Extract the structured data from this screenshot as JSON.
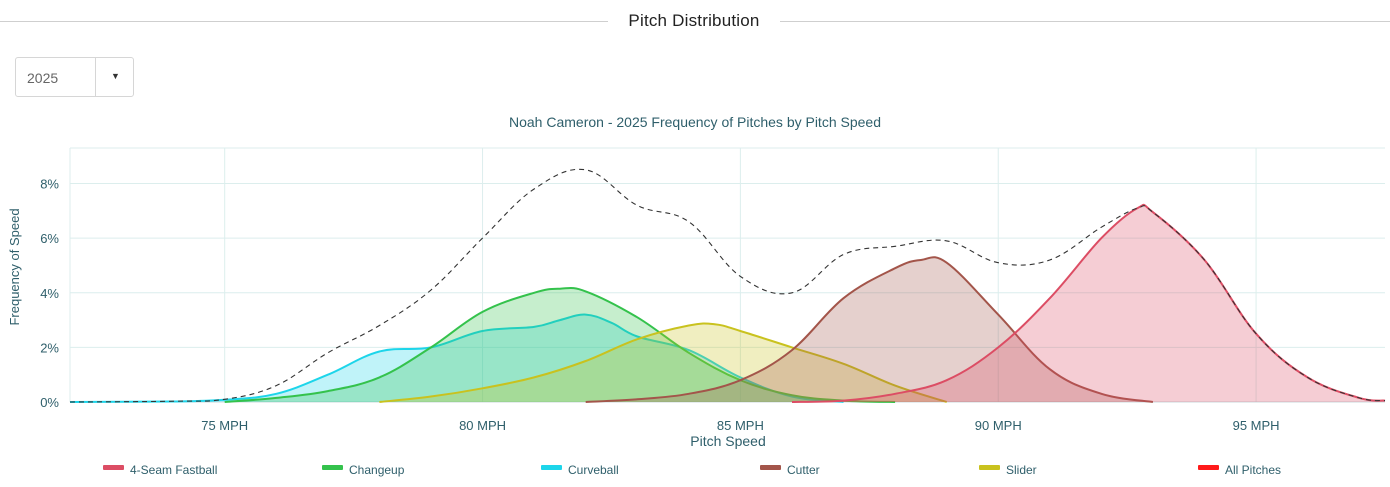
{
  "header": {
    "title": "Pitch Distribution"
  },
  "filter": {
    "selected_year": "2025"
  },
  "icons": {
    "dropdown": "caret-down-icon"
  },
  "chart_data": {
    "type": "area",
    "title": "Noah Cameron - 2025 Frequency of Pitches by Pitch Speed",
    "xlabel": "Pitch Speed",
    "ylabel": "Frequency of Speed",
    "xlim": [
      72,
      97.5
    ],
    "ylim": [
      0,
      9.3
    ],
    "x_ticks": [
      75,
      80,
      85,
      90,
      95
    ],
    "x_tick_labels": [
      "75 MPH",
      "80 MPH",
      "85 MPH",
      "90 MPH",
      "95 MPH"
    ],
    "y_ticks": [
      0,
      2,
      4,
      6,
      8
    ],
    "y_tick_labels": [
      "0%",
      "2%",
      "4%",
      "6%",
      "8%"
    ],
    "grid": true,
    "legend_position": "bottom",
    "series": [
      {
        "name": "Curveball",
        "color": "#1dd5ea",
        "x": [
          72,
          74,
          75,
          76,
          77,
          78,
          79,
          80,
          81,
          81.5,
          82,
          82.5,
          83,
          84,
          85,
          86,
          87
        ],
        "y": [
          0,
          0.02,
          0.08,
          0.3,
          1.0,
          1.85,
          2.0,
          2.6,
          2.75,
          3.0,
          3.2,
          2.9,
          2.4,
          1.9,
          0.9,
          0.2,
          0
        ]
      },
      {
        "name": "Changeup",
        "color": "#34c24c",
        "x": [
          75,
          76,
          77,
          78,
          79,
          80,
          81,
          81.5,
          82,
          83,
          84,
          85,
          86,
          87,
          88
        ],
        "y": [
          0,
          0.15,
          0.4,
          0.9,
          2.0,
          3.3,
          4.0,
          4.15,
          4.05,
          3.1,
          1.8,
          0.8,
          0.25,
          0.05,
          0
        ]
      },
      {
        "name": "Slider",
        "color": "#c9c21e",
        "x": [
          78,
          79,
          80,
          81,
          82,
          83,
          84,
          84.5,
          85,
          86,
          87,
          88,
          89
        ],
        "y": [
          0,
          0.2,
          0.5,
          0.9,
          1.5,
          2.3,
          2.8,
          2.85,
          2.6,
          2.0,
          1.4,
          0.6,
          0
        ]
      },
      {
        "name": "Cutter",
        "color": "#a3554a",
        "x": [
          82,
          83,
          84,
          85,
          86,
          87,
          88,
          88.5,
          89,
          90,
          91,
          92,
          93
        ],
        "y": [
          0,
          0.1,
          0.3,
          0.8,
          1.9,
          3.8,
          4.9,
          5.2,
          5.1,
          3.2,
          1.2,
          0.3,
          0
        ]
      },
      {
        "name": "4-Seam Fastball",
        "color": "#dc4d64",
        "x": [
          86,
          87,
          88,
          89,
          90,
          91,
          92,
          92.7,
          93,
          94,
          95,
          96,
          97,
          97.5
        ],
        "y": [
          0,
          0.05,
          0.3,
          0.8,
          2.0,
          3.8,
          6.0,
          7.1,
          6.95,
          5.2,
          2.5,
          0.9,
          0.15,
          0.05
        ]
      },
      {
        "name": "All Pitches",
        "color": "#ff1a1a",
        "x": [
          72,
          74,
          75,
          76,
          77,
          78,
          79,
          80,
          81,
          82,
          83,
          84,
          85,
          86,
          87,
          88,
          89,
          90,
          91,
          92,
          92.7,
          93,
          94,
          95,
          96,
          97,
          97.5
        ],
        "y": [
          0,
          0.03,
          0.1,
          0.6,
          1.8,
          2.8,
          4.1,
          6.0,
          7.8,
          8.5,
          7.2,
          6.6,
          4.6,
          4.0,
          5.4,
          5.7,
          5.9,
          5.1,
          5.2,
          6.4,
          7.1,
          6.95,
          5.2,
          2.5,
          0.9,
          0.15,
          0.05
        ]
      }
    ]
  }
}
